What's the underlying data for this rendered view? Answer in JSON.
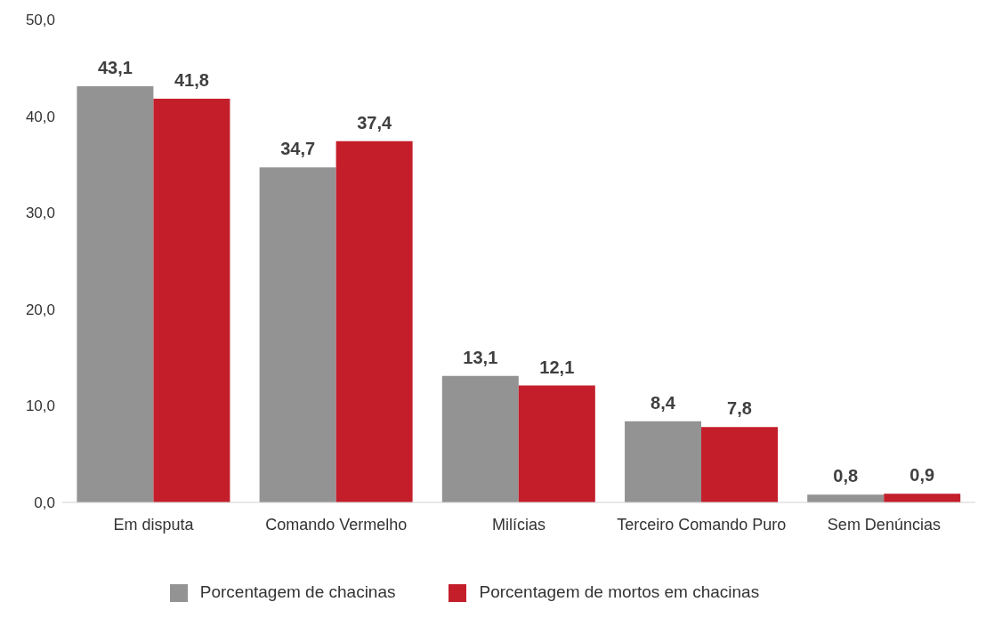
{
  "chart_data": {
    "type": "bar",
    "categories": [
      "Em disputa",
      "Comando Vermelho",
      "Milícias",
      "Terceiro Comando Puro",
      "Sem Denúncias"
    ],
    "series": [
      {
        "name": "Porcentagem de chacinas",
        "color": "#939393",
        "values": [
          43.1,
          34.7,
          13.1,
          8.4,
          0.8
        ],
        "value_labels": [
          "43,1",
          "34,7",
          "13,1",
          "8,4",
          "0,8"
        ]
      },
      {
        "name": "Porcentagem de mortos em chacinas",
        "color": "#c41e2b",
        "values": [
          41.8,
          37.4,
          12.1,
          7.8,
          0.9
        ],
        "value_labels": [
          "41,8",
          "37,4",
          "12,1",
          "7,8",
          "0,9"
        ]
      }
    ],
    "ylim": [
      0,
      50
    ],
    "yticks": [
      {
        "value": 0,
        "label": "0,0"
      },
      {
        "value": 10,
        "label": "10,0"
      },
      {
        "value": 20,
        "label": "20,0"
      },
      {
        "value": 30,
        "label": "30,0"
      },
      {
        "value": 40,
        "label": "40,0"
      },
      {
        "value": 50,
        "label": "50,0"
      }
    ],
    "grid": false,
    "legend": "bottom"
  }
}
